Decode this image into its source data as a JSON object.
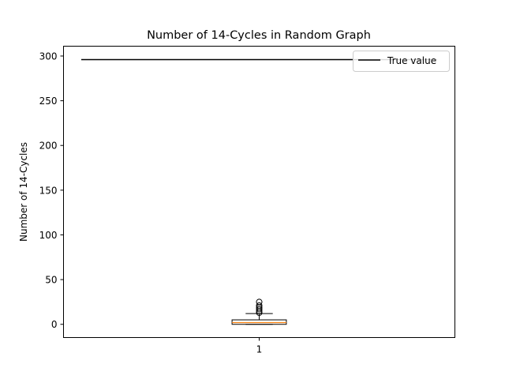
{
  "chart_data": {
    "type": "box",
    "title": "Number of 14-Cycles in Random Graph",
    "xlabel": "",
    "ylabel": "Number of 14-Cycles",
    "categories": [
      "1"
    ],
    "yticks": [
      0,
      50,
      100,
      150,
      200,
      250,
      300
    ],
    "ylim": [
      -14.8,
      311
    ],
    "grid": false,
    "legend_position": "top-right",
    "box": {
      "category": "1",
      "whisker_low": 0,
      "q1": 0,
      "median": 2,
      "q3": 5,
      "whisker_high": 12,
      "outliers": [
        13,
        15,
        17,
        19,
        21,
        25
      ]
    },
    "reference_line": {
      "name": "True value",
      "value": 296
    },
    "colors": {
      "box": "#000000",
      "median": "#ff7f0e",
      "reference_line": "#000000",
      "outlier": "#000000"
    }
  }
}
